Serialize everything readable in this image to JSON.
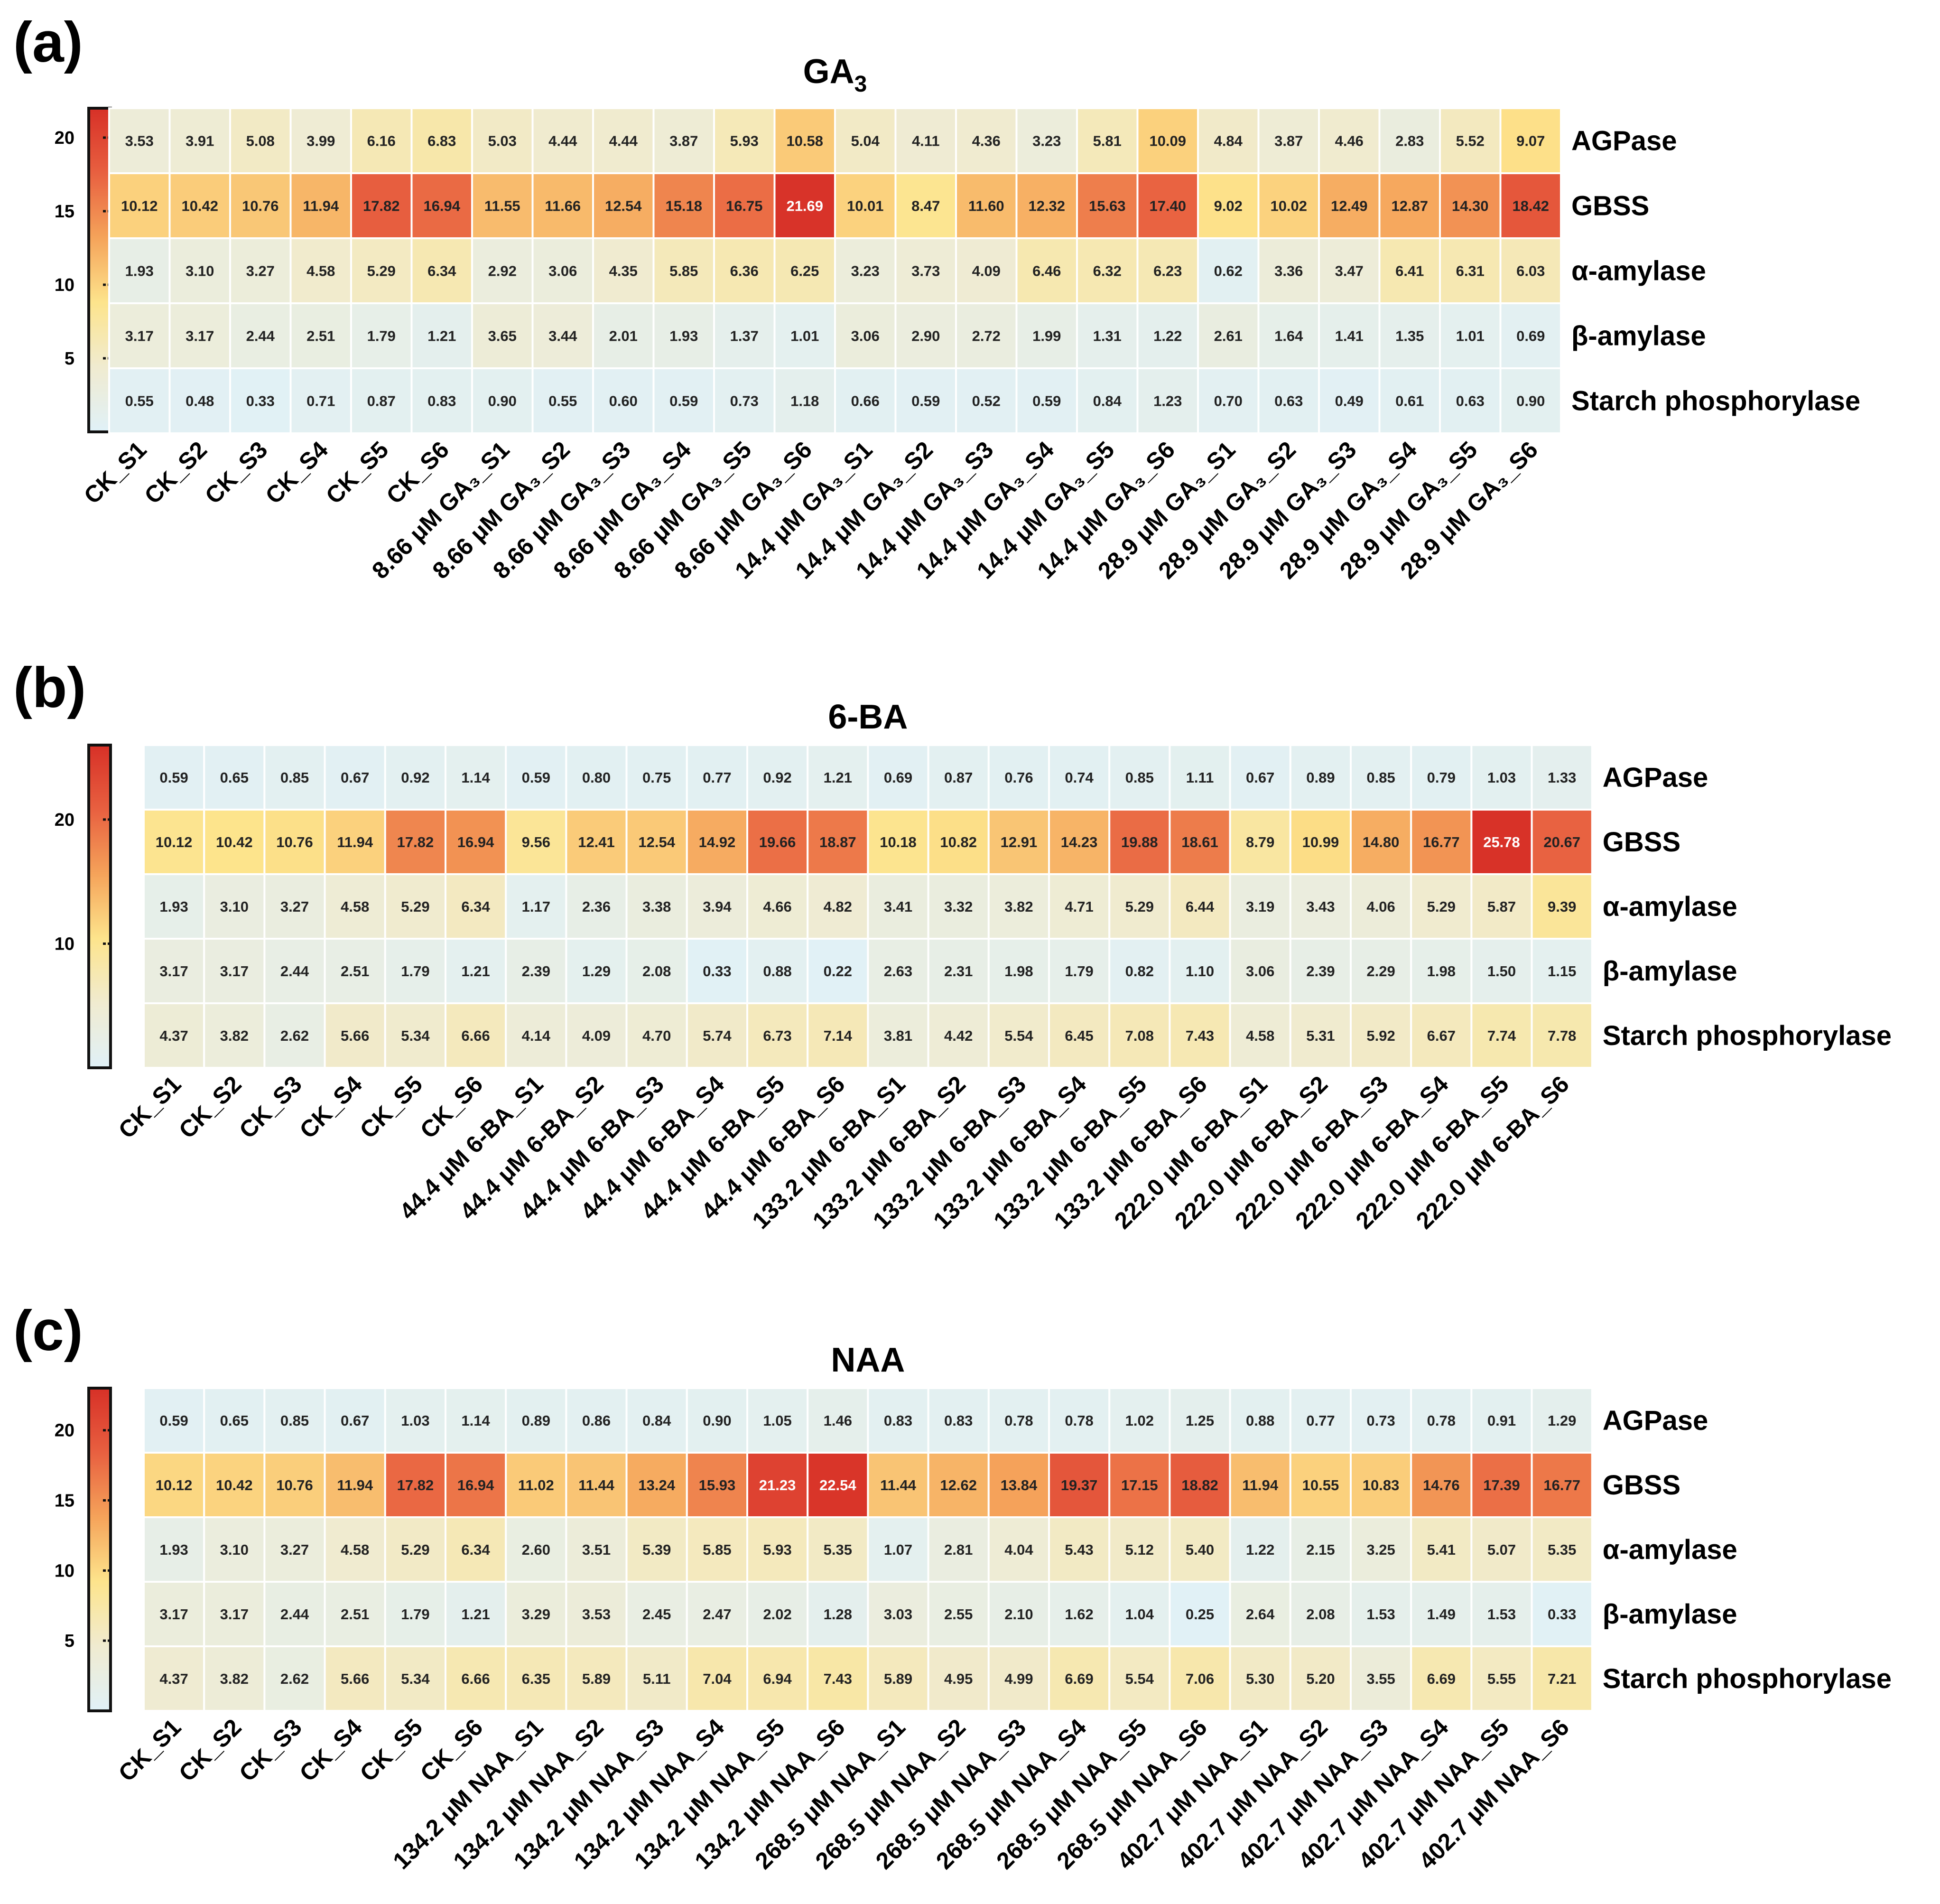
{
  "color_scale": {
    "stops": [
      "#e0f1f8",
      "#f0ebd0",
      "#fde48c",
      "#f5a35a",
      "#e86040",
      "#d73027"
    ],
    "text_dark": "#222222",
    "text_light": "#ffffff"
  },
  "row_labels": [
    "AGPase",
    "GBSS",
    "α-amylase",
    "β-amylase",
    "Starch phosphorylase"
  ],
  "chart_data": [
    {
      "type": "heatmap",
      "panel": "(a)",
      "title": "GA",
      "title_sub": "3",
      "columns": [
        "CK_S1",
        "CK_S2",
        "CK_S3",
        "CK_S4",
        "CK_S5",
        "CK_S6",
        "8.66 μM GA₃_S1",
        "8.66 μM GA₃_S2",
        "8.66 μM GA₃_S3",
        "8.66 μM GA₃_S4",
        "8.66 μM GA₃_S5",
        "8.66 μM GA₃_S6",
        "14.4 μM GA₃_S1",
        "14.4 μM GA₃_S2",
        "14.4 μM GA₃_S3",
        "14.4 μM GA₃_S4",
        "14.4 μM GA₃_S5",
        "14.4 μM GA₃_S6",
        "28.9 μM GA₃_S1",
        "28.9 μM GA₃_S2",
        "28.9 μM GA₃_S3",
        "28.9 μM GA₃_S4",
        "28.9 μM GA₃_S5",
        "28.9 μM GA₃_S6"
      ],
      "values": [
        [
          "3.53",
          "3.91",
          "5.08",
          "3.99",
          "6.16",
          "6.83",
          "5.03",
          "4.44",
          "4.44",
          "3.87",
          "5.93",
          "10.58",
          "5.04",
          "4.11",
          "4.36",
          "3.23",
          "5.81",
          "10.09",
          "4.84",
          "3.87",
          "4.46",
          "2.83",
          "5.52",
          "9.07"
        ],
        [
          "10.12",
          "10.42",
          "10.76",
          "11.94",
          "17.82",
          "16.94",
          "11.55",
          "11.66",
          "12.54",
          "15.18",
          "16.75",
          "21.69",
          "10.01",
          "8.47",
          "11.60",
          "12.32",
          "15.63",
          "17.40",
          "9.02",
          "10.02",
          "12.49",
          "12.87",
          "14.30",
          "18.42"
        ],
        [
          "1.93",
          "3.10",
          "3.27",
          "4.58",
          "5.29",
          "6.34",
          "2.92",
          "3.06",
          "4.35",
          "5.85",
          "6.36",
          "6.25",
          "3.23",
          "3.73",
          "4.09",
          "6.46",
          "6.32",
          "6.23",
          "0.62",
          "3.36",
          "3.47",
          "6.41",
          "6.31",
          "6.03"
        ],
        [
          "3.17",
          "3.17",
          "2.44",
          "2.51",
          "1.79",
          "1.21",
          "3.65",
          "3.44",
          "2.01",
          "1.93",
          "1.37",
          "1.01",
          "3.06",
          "2.90",
          "2.72",
          "1.99",
          "1.31",
          "1.22",
          "2.61",
          "1.64",
          "1.41",
          "1.35",
          "1.01",
          "0.69"
        ],
        [
          "0.55",
          "0.48",
          "0.33",
          "0.71",
          "0.87",
          "0.83",
          "0.90",
          "0.55",
          "0.60",
          "0.59",
          "0.73",
          "1.18",
          "0.66",
          "0.59",
          "0.52",
          "0.59",
          "0.84",
          "1.23",
          "0.70",
          "0.63",
          "0.49",
          "0.61",
          "0.63",
          "0.90"
        ]
      ],
      "colorbar": {
        "min": 0,
        "max": 22,
        "ticks": [
          "5",
          "10",
          "15",
          "20"
        ],
        "tick_values": [
          5,
          10,
          15,
          20
        ]
      }
    },
    {
      "type": "heatmap",
      "panel": "(b)",
      "title": "6-BA",
      "title_sub": "",
      "columns": [
        "CK_S1",
        "CK_S2",
        "CK_S3",
        "CK_S4",
        "CK_S5",
        "CK_S6",
        "44.4 μM 6-BA_S1",
        "44.4 μM 6-BA_S2",
        "44.4 μM 6-BA_S3",
        "44.4 μM 6-BA_S4",
        "44.4 μM 6-BA_S5",
        "44.4 μM 6-BA_S6",
        "133.2 μM 6-BA_S1",
        "133.2 μM 6-BA_S2",
        "133.2 μM 6-BA_S3",
        "133.2 μM 6-BA_S4",
        "133.2 μM 6-BA_S5",
        "133.2 μM 6-BA_S6",
        "222.0 μM 6-BA_S1",
        "222.0 μM 6-BA_S2",
        "222.0 μM 6-BA_S3",
        "222.0 μM 6-BA_S4",
        "222.0 μM 6-BA_S5",
        "222.0 μM 6-BA_S6"
      ],
      "values": [
        [
          "0.59",
          "0.65",
          "0.85",
          "0.67",
          "0.92",
          "1.14",
          "0.59",
          "0.80",
          "0.75",
          "0.77",
          "0.92",
          "1.21",
          "0.69",
          "0.87",
          "0.76",
          "0.74",
          "0.85",
          "1.11",
          "0.67",
          "0.89",
          "0.85",
          "0.79",
          "1.03",
          "1.33"
        ],
        [
          "10.12",
          "10.42",
          "10.76",
          "11.94",
          "17.82",
          "16.94",
          "9.56",
          "12.41",
          "12.54",
          "14.92",
          "19.66",
          "18.87",
          "10.18",
          "10.82",
          "12.91",
          "14.23",
          "19.88",
          "18.61",
          "8.79",
          "10.99",
          "14.80",
          "16.77",
          "25.78",
          "20.67"
        ],
        [
          "1.93",
          "3.10",
          "3.27",
          "4.58",
          "5.29",
          "6.34",
          "1.17",
          "2.36",
          "3.38",
          "3.94",
          "4.66",
          "4.82",
          "3.41",
          "3.32",
          "3.82",
          "4.71",
          "5.29",
          "6.44",
          "3.19",
          "3.43",
          "4.06",
          "5.29",
          "5.87",
          "9.39"
        ],
        [
          "3.17",
          "3.17",
          "2.44",
          "2.51",
          "1.79",
          "1.21",
          "2.39",
          "1.29",
          "2.08",
          "0.33",
          "0.88",
          "0.22",
          "2.63",
          "2.31",
          "1.98",
          "1.79",
          "0.82",
          "1.10",
          "3.06",
          "2.39",
          "2.29",
          "1.98",
          "1.50",
          "1.15"
        ],
        [
          "4.37",
          "3.82",
          "2.62",
          "5.66",
          "5.34",
          "6.66",
          "4.14",
          "4.09",
          "4.70",
          "5.74",
          "6.73",
          "7.14",
          "3.81",
          "4.42",
          "5.54",
          "6.45",
          "7.08",
          "7.43",
          "4.58",
          "5.31",
          "5.92",
          "6.67",
          "7.74",
          "7.78"
        ]
      ],
      "colorbar": {
        "min": 0,
        "max": 26,
        "ticks": [
          "10",
          "20"
        ],
        "tick_values": [
          10,
          20
        ]
      }
    },
    {
      "type": "heatmap",
      "panel": "(c)",
      "title": "NAA",
      "title_sub": "",
      "columns": [
        "CK_S1",
        "CK_S2",
        "CK_S3",
        "CK_S4",
        "CK_S5",
        "CK_S6",
        "134.2 μM NAA_S1",
        "134.2 μM NAA_S2",
        "134.2 μM NAA_S3",
        "134.2 μM NAA_S4",
        "134.2 μM NAA_S5",
        "134.2 μM NAA_S6",
        "268.5 μM NAA_S1",
        "268.5 μM NAA_S2",
        "268.5 μM NAA_S3",
        "268.5 μM NAA_S4",
        "268.5 μM NAA_S5",
        "268.5 μM NAA_S6",
        "402.7 μM NAA_S1",
        "402.7 μM NAA_S2",
        "402.7 μM NAA_S3",
        "402.7 μM NAA_S4",
        "402.7 μM NAA_S5",
        "402.7 μM NAA_S6"
      ],
      "values": [
        [
          "0.59",
          "0.65",
          "0.85",
          "0.67",
          "1.03",
          "1.14",
          "0.89",
          "0.86",
          "0.84",
          "0.90",
          "1.05",
          "1.46",
          "0.83",
          "0.83",
          "0.78",
          "0.78",
          "1.02",
          "1.25",
          "0.88",
          "0.77",
          "0.73",
          "0.78",
          "0.91",
          "1.29"
        ],
        [
          "10.12",
          "10.42",
          "10.76",
          "11.94",
          "17.82",
          "16.94",
          "11.02",
          "11.44",
          "13.24",
          "15.93",
          "21.23",
          "22.54",
          "11.44",
          "12.62",
          "13.84",
          "19.37",
          "17.15",
          "18.82",
          "11.94",
          "10.55",
          "10.83",
          "14.76",
          "17.39",
          "16.77"
        ],
        [
          "1.93",
          "3.10",
          "3.27",
          "4.58",
          "5.29",
          "6.34",
          "2.60",
          "3.51",
          "5.39",
          "5.85",
          "5.93",
          "5.35",
          "1.07",
          "2.81",
          "4.04",
          "5.43",
          "5.12",
          "5.40",
          "1.22",
          "2.15",
          "3.25",
          "5.41",
          "5.07",
          "5.35"
        ],
        [
          "3.17",
          "3.17",
          "2.44",
          "2.51",
          "1.79",
          "1.21",
          "3.29",
          "3.53",
          "2.45",
          "2.47",
          "2.02",
          "1.28",
          "3.03",
          "2.55",
          "2.10",
          "1.62",
          "1.04",
          "0.25",
          "2.64",
          "2.08",
          "1.53",
          "1.49",
          "1.53",
          "0.33"
        ],
        [
          "4.37",
          "3.82",
          "2.62",
          "5.66",
          "5.34",
          "6.66",
          "6.35",
          "5.89",
          "5.11",
          "7.04",
          "6.94",
          "7.43",
          "5.89",
          "4.95",
          "4.99",
          "6.69",
          "5.54",
          "7.06",
          "5.30",
          "5.20",
          "3.55",
          "6.69",
          "5.55",
          "7.21"
        ]
      ],
      "colorbar": {
        "min": 0,
        "max": 23,
        "ticks": [
          "5",
          "10",
          "15",
          "20"
        ],
        "tick_values": [
          5,
          10,
          15,
          20
        ]
      }
    }
  ]
}
